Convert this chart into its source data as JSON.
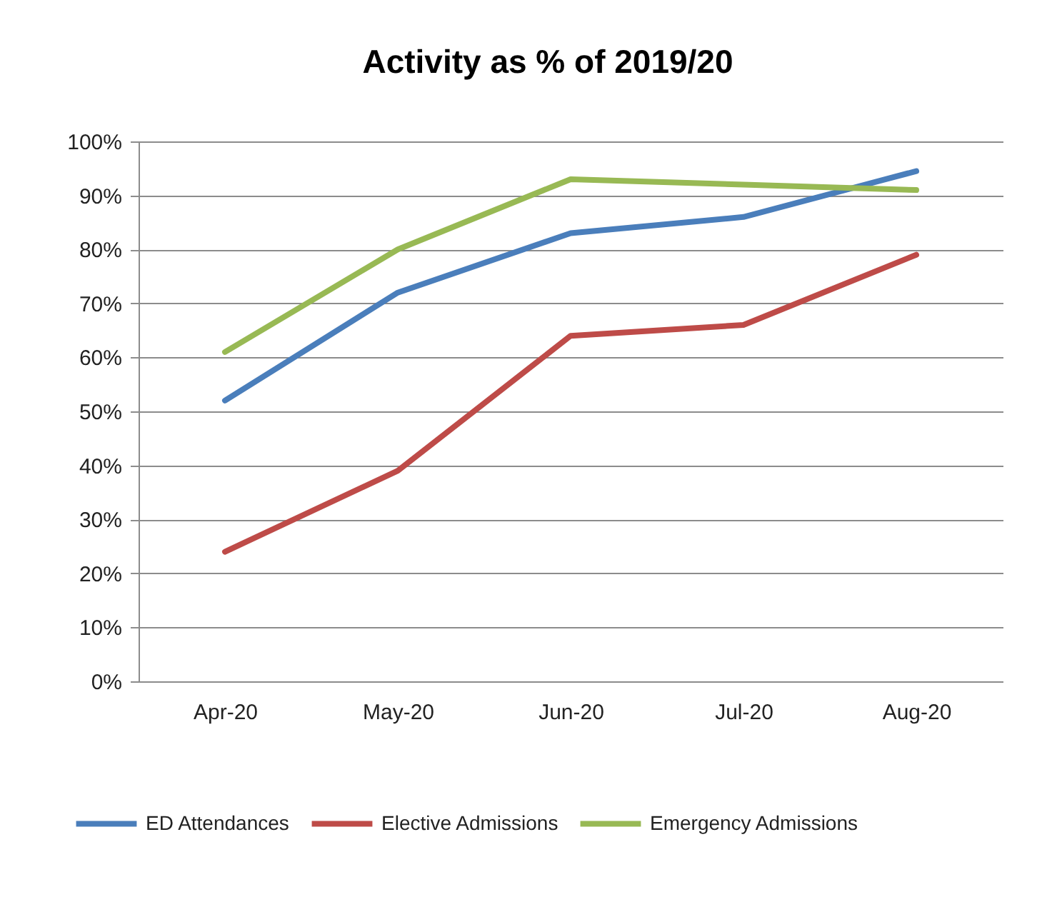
{
  "chart_data": {
    "type": "line",
    "title": "Activity as % of 2019/20",
    "categories": [
      "Apr-20",
      "May-20",
      "Jun-20",
      "Jul-20",
      "Aug-20"
    ],
    "series": [
      {
        "name": "ED Attendances",
        "color": "#4a7ebb",
        "values": [
          52,
          72,
          83,
          86,
          94.5
        ]
      },
      {
        "name": "Elective Admissions",
        "color": "#be4b48",
        "values": [
          24,
          39,
          64,
          66,
          79
        ]
      },
      {
        "name": "Emergency Admissions",
        "color": "#98b954",
        "values": [
          61,
          80,
          93,
          92,
          91
        ]
      }
    ],
    "ylim": [
      0,
      100
    ],
    "yticks": [
      {
        "value": 0,
        "label": "0%"
      },
      {
        "value": 10,
        "label": "10%"
      },
      {
        "value": 20,
        "label": "20%"
      },
      {
        "value": 30,
        "label": "30%"
      },
      {
        "value": 40,
        "label": "40%"
      },
      {
        "value": 50,
        "label": "50%"
      },
      {
        "value": 60,
        "label": "60%"
      },
      {
        "value": 70,
        "label": "70%"
      },
      {
        "value": 80,
        "label": "80%"
      },
      {
        "value": 90,
        "label": "90%"
      },
      {
        "value": 100,
        "label": "100%"
      }
    ],
    "grid": "y",
    "legend": "bottom",
    "marker": "none",
    "line_style": "solid"
  }
}
